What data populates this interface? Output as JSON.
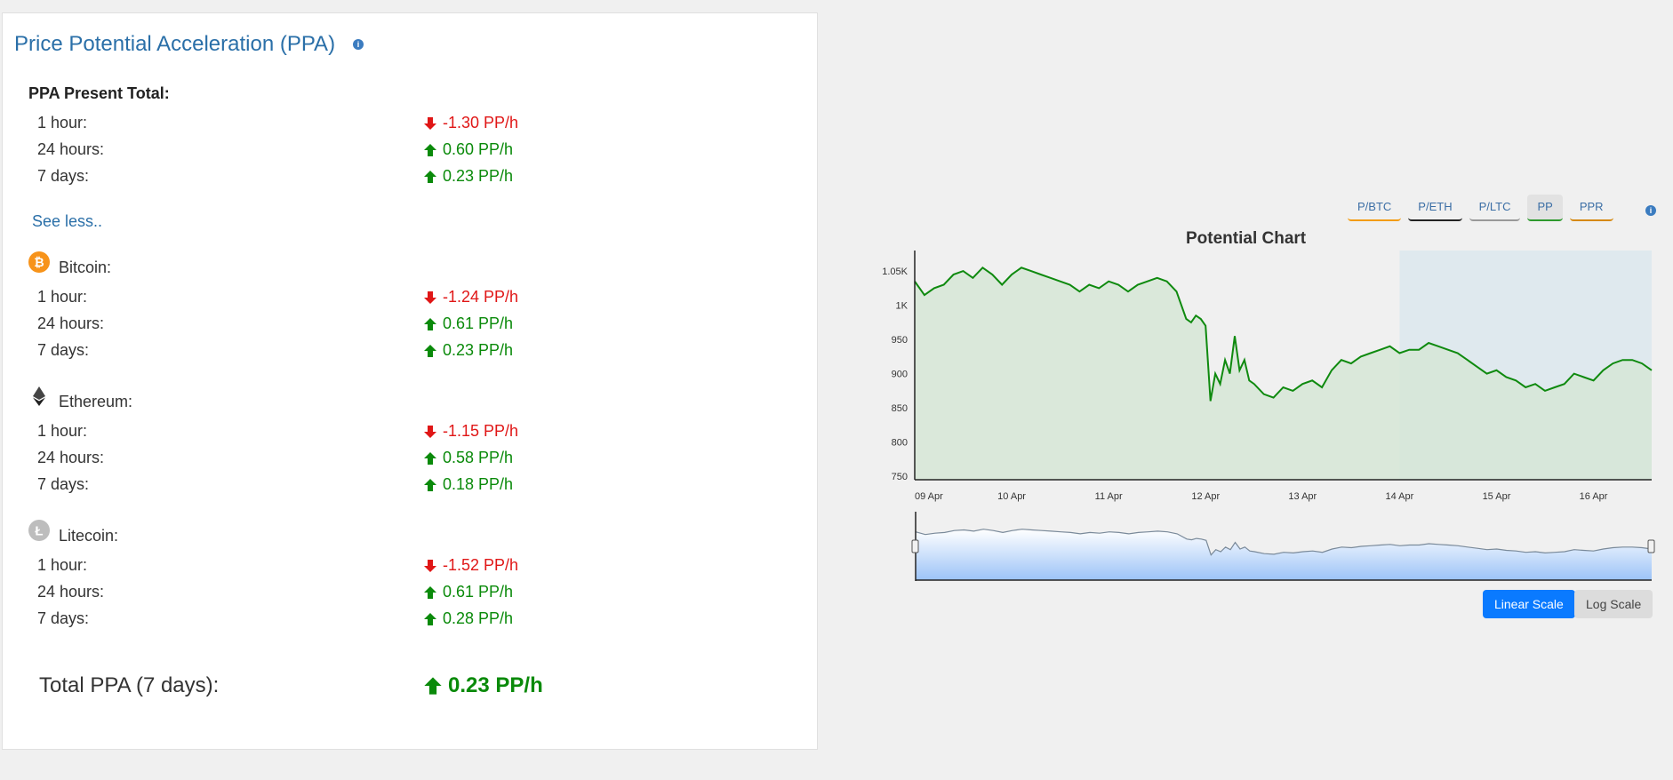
{
  "ppa": {
    "title": "Price Potential Acceleration (PPA)",
    "info_icon": "i",
    "present_total_label": "PPA Present Total:",
    "present_total": [
      {
        "label": "1 hour:",
        "value": "-1.30 PP/h",
        "dir": "down"
      },
      {
        "label": "24 hours:",
        "value": "0.60 PP/h",
        "dir": "up"
      },
      {
        "label": "7 days:",
        "value": "0.23 PP/h",
        "dir": "up"
      }
    ],
    "see_less": "See less..",
    "coins": [
      {
        "name": "Bitcoin:",
        "icon": "bitcoin-icon",
        "rows": [
          {
            "label": "1 hour:",
            "value": "-1.24 PP/h",
            "dir": "down"
          },
          {
            "label": "24 hours:",
            "value": "0.61 PP/h",
            "dir": "up"
          },
          {
            "label": "7 days:",
            "value": "0.23 PP/h",
            "dir": "up"
          }
        ]
      },
      {
        "name": "Ethereum:",
        "icon": "ethereum-icon",
        "rows": [
          {
            "label": "1 hour:",
            "value": "-1.15 PP/h",
            "dir": "down"
          },
          {
            "label": "24 hours:",
            "value": "0.58 PP/h",
            "dir": "up"
          },
          {
            "label": "7 days:",
            "value": "0.18 PP/h",
            "dir": "up"
          }
        ]
      },
      {
        "name": "Litecoin:",
        "icon": "litecoin-icon",
        "rows": [
          {
            "label": "1 hour:",
            "value": "-1.52 PP/h",
            "dir": "down"
          },
          {
            "label": "24 hours:",
            "value": "0.61 PP/h",
            "dir": "up"
          },
          {
            "label": "7 days:",
            "value": "0.28 PP/h",
            "dir": "up"
          }
        ]
      }
    ],
    "total_label": "Total PPA (7 days):",
    "total_value": "0.23 PP/h"
  },
  "chart_tabs": [
    "P/BTC",
    "P/ETH",
    "P/LTC",
    "PP",
    "PPR"
  ],
  "chart_tab_active": "PP",
  "scale_buttons": {
    "linear": "Linear Scale",
    "log": "Log Scale"
  },
  "colors": {
    "up": "#0a8a0a",
    "down": "#e01616",
    "line": "#0f8a0f",
    "accent": "#0a7aff"
  },
  "chart_data": {
    "type": "area",
    "title": "Potential Chart",
    "xlabel": "",
    "ylabel": "",
    "x_ticks": [
      "09 Apr",
      "10 Apr",
      "11 Apr",
      "12 Apr",
      "13 Apr",
      "14 Apr",
      "15 Apr",
      "16 Apr"
    ],
    "y_ticks": [
      "750",
      "800",
      "850",
      "900",
      "950",
      "1K",
      "1.05K"
    ],
    "y_tick_values": [
      750,
      800,
      850,
      900,
      950,
      1000,
      1050
    ],
    "ylim": [
      745,
      1080
    ],
    "xlim": [
      0,
      7.6
    ],
    "highlight_range": [
      5.0,
      7.6
    ],
    "series": [
      {
        "x": [
          0,
          0.1,
          0.2,
          0.3,
          0.4,
          0.5,
          0.6,
          0.7,
          0.8,
          0.9,
          1.0,
          1.1,
          1.2,
          1.3,
          1.4,
          1.5,
          1.6,
          1.7,
          1.8,
          1.9,
          2.0,
          2.1,
          2.2,
          2.3,
          2.4,
          2.5,
          2.6,
          2.7,
          2.8,
          2.85,
          2.9,
          2.95,
          3.0,
          3.05,
          3.1,
          3.15,
          3.2,
          3.25,
          3.3,
          3.35,
          3.4,
          3.45,
          3.5,
          3.6,
          3.7,
          3.8,
          3.9,
          4.0,
          4.1,
          4.2,
          4.3,
          4.4,
          4.5,
          4.6,
          4.7,
          4.8,
          4.9,
          5.0,
          5.1,
          5.2,
          5.3,
          5.4,
          5.5,
          5.6,
          5.7,
          5.8,
          5.9,
          6.0,
          6.1,
          6.2,
          6.3,
          6.4,
          6.5,
          6.6,
          6.7,
          6.8,
          6.9,
          7.0,
          7.1,
          7.2,
          7.3,
          7.4,
          7.5,
          7.6
        ],
        "y": [
          1035,
          1015,
          1025,
          1030,
          1045,
          1050,
          1040,
          1055,
          1045,
          1030,
          1045,
          1055,
          1050,
          1045,
          1040,
          1035,
          1030,
          1020,
          1030,
          1025,
          1035,
          1030,
          1020,
          1030,
          1035,
          1040,
          1035,
          1020,
          980,
          975,
          985,
          980,
          970,
          860,
          900,
          885,
          920,
          900,
          955,
          905,
          920,
          890,
          885,
          870,
          865,
          880,
          875,
          885,
          890,
          880,
          905,
          920,
          915,
          925,
          930,
          935,
          940,
          930,
          935,
          935,
          945,
          940,
          935,
          930,
          920,
          910,
          900,
          905,
          895,
          890,
          880,
          885,
          875,
          880,
          885,
          900,
          895,
          890,
          905,
          915,
          920,
          920,
          915,
          905
        ]
      }
    ]
  }
}
